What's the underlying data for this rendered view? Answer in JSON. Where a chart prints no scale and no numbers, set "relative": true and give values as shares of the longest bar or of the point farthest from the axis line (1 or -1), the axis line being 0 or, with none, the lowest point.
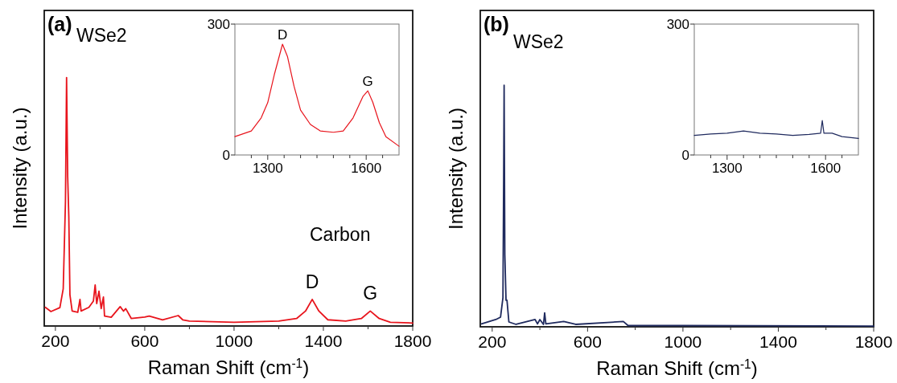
{
  "chart_data": [
    {
      "type": "line",
      "title": "(a)",
      "xlabel": "Raman Shift (cm$^{-1}$)",
      "ylabel": "Intensity (a.u.)",
      "relative": true,
      "xlim": [
        150,
        1800
      ],
      "xticks": [
        200,
        {
          "value": 400,
          "label": null
        },
        600,
        {
          "value": 800,
          "label": null
        },
        1000,
        {
          "value": 1200,
          "label": null
        },
        1400,
        {
          "value": 1600,
          "label": null
        },
        1800
      ],
      "tick_labels": "x",
      "legend": false,
      "grid": false,
      "annotations": [
        "WSe2",
        "Carbon",
        {
          "text": "D",
          "x": 1350,
          "y": 0.107
        },
        {
          "text": "G",
          "x": 1610,
          "y": 0.06
        }
      ],
      "x": [
        155,
        180,
        220,
        235,
        245,
        250,
        255,
        260,
        265,
        275,
        300,
        310,
        315,
        350,
        370,
        378,
        385,
        395,
        405,
        415,
        420,
        450,
        490,
        505,
        515,
        540,
        600,
        620,
        680,
        750,
        770,
        800,
        1000,
        1200,
        1280,
        1320,
        1350,
        1380,
        1420,
        1500,
        1570,
        1610,
        1650,
        1700,
        1800
      ],
      "series": [
        {
          "color": "#e8141c",
          "values": [
            0.075,
            0.058,
            0.074,
            0.15,
            0.5,
            1.0,
            0.6,
            0.44,
            0.126,
            0.06,
            0.055,
            0.107,
            0.06,
            0.075,
            0.1,
            0.165,
            0.09,
            0.14,
            0.07,
            0.117,
            0.04,
            0.035,
            0.078,
            0.06,
            0.07,
            0.03,
            0.036,
            0.04,
            0.025,
            0.042,
            0.025,
            0.02,
            0.015,
            0.02,
            0.03,
            0.06,
            0.107,
            0.06,
            0.025,
            0.02,
            0.03,
            0.06,
            0.03,
            0.015,
            0.012
          ]
        }
      ]
    },
    {
      "type": "line",
      "xlim": [
        1200,
        1700
      ],
      "xticks": [
        {
          "value": 1250,
          "label": null
        },
        1300,
        {
          "value": 1350,
          "label": null
        },
        {
          "value": 1400,
          "label": null
        },
        {
          "value": 1450,
          "label": null
        },
        {
          "value": 1500,
          "label": null
        },
        {
          "value": 1550,
          "label": null
        },
        1600,
        {
          "value": 1650,
          "label": null
        }
      ],
      "ylim": [
        0,
        300
      ],
      "yticks": [
        {
          "value": 0,
          "label": "0"
        },
        300
      ],
      "legend": false,
      "grid": false,
      "annotations": [
        {
          "text": "D",
          "x": 1345,
          "y": 254
        },
        {
          "text": "G",
          "x": 1605,
          "y": 147
        }
      ],
      "x": [
        1200,
        1250,
        1280,
        1300,
        1320,
        1345,
        1360,
        1380,
        1400,
        1430,
        1460,
        1500,
        1530,
        1560,
        1590,
        1605,
        1620,
        1640,
        1660,
        1700
      ],
      "series": [
        {
          "color": "#e8141c",
          "values": [
            42,
            55,
            85,
            120,
            184,
            254,
            226,
            158,
            103,
            70,
            55,
            52,
            55,
            85,
            134,
            147,
            121,
            74,
            42,
            20
          ]
        }
      ]
    },
    {
      "type": "line",
      "title": "(b)",
      "xlabel": "Raman Shift (cm$^{-1}$)",
      "ylabel": "Intensity (a.u.)",
      "relative": true,
      "xlim": [
        150,
        1800
      ],
      "xticks": [
        200,
        {
          "value": 400,
          "label": null
        },
        600,
        {
          "value": 800,
          "label": null
        },
        1000,
        {
          "value": 1200,
          "label": null
        },
        1400,
        {
          "value": 1600,
          "label": null
        },
        1800
      ],
      "tick_labels": "x",
      "legend": false,
      "grid": false,
      "annotations": [
        "WSe2"
      ],
      "x": [
        155,
        215,
        235,
        245,
        248,
        250,
        253,
        258,
        262,
        270,
        300,
        380,
        390,
        400,
        415,
        420,
        425,
        500,
        550,
        750,
        770,
        1000,
        1800
      ],
      "series": [
        {
          "color": "#1f2a5e",
          "values": [
            0.012,
            0.03,
            0.04,
            0.12,
            0.6,
            1.0,
            0.3,
            0.11,
            0.11,
            0.02,
            0.01,
            0.03,
            0.012,
            0.03,
            0.01,
            0.058,
            0.012,
            0.022,
            0.01,
            0.022,
            0.005,
            0.005,
            0.003
          ]
        }
      ]
    },
    {
      "type": "line",
      "xlim": [
        1200,
        1700
      ],
      "xticks": [
        {
          "value": 1250,
          "label": null
        },
        1300,
        {
          "value": 1350,
          "label": null
        },
        {
          "value": 1400,
          "label": null
        },
        {
          "value": 1450,
          "label": null
        },
        {
          "value": 1500,
          "label": null
        },
        {
          "value": 1550,
          "label": null
        },
        1600,
        {
          "value": 1650,
          "label": null
        }
      ],
      "ylim": [
        0,
        300
      ],
      "yticks": [
        {
          "value": 0,
          "label": "0"
        },
        300
      ],
      "legend": false,
      "grid": false,
      "x": [
        1200,
        1250,
        1300,
        1350,
        1400,
        1450,
        1500,
        1550,
        1585,
        1590,
        1595,
        1620,
        1650,
        1700
      ],
      "series": [
        {
          "color": "#1f2a5e",
          "values": [
            45,
            48,
            50,
            55,
            50,
            48,
            45,
            47,
            50,
            79,
            50,
            50,
            42,
            38
          ]
        }
      ]
    }
  ]
}
